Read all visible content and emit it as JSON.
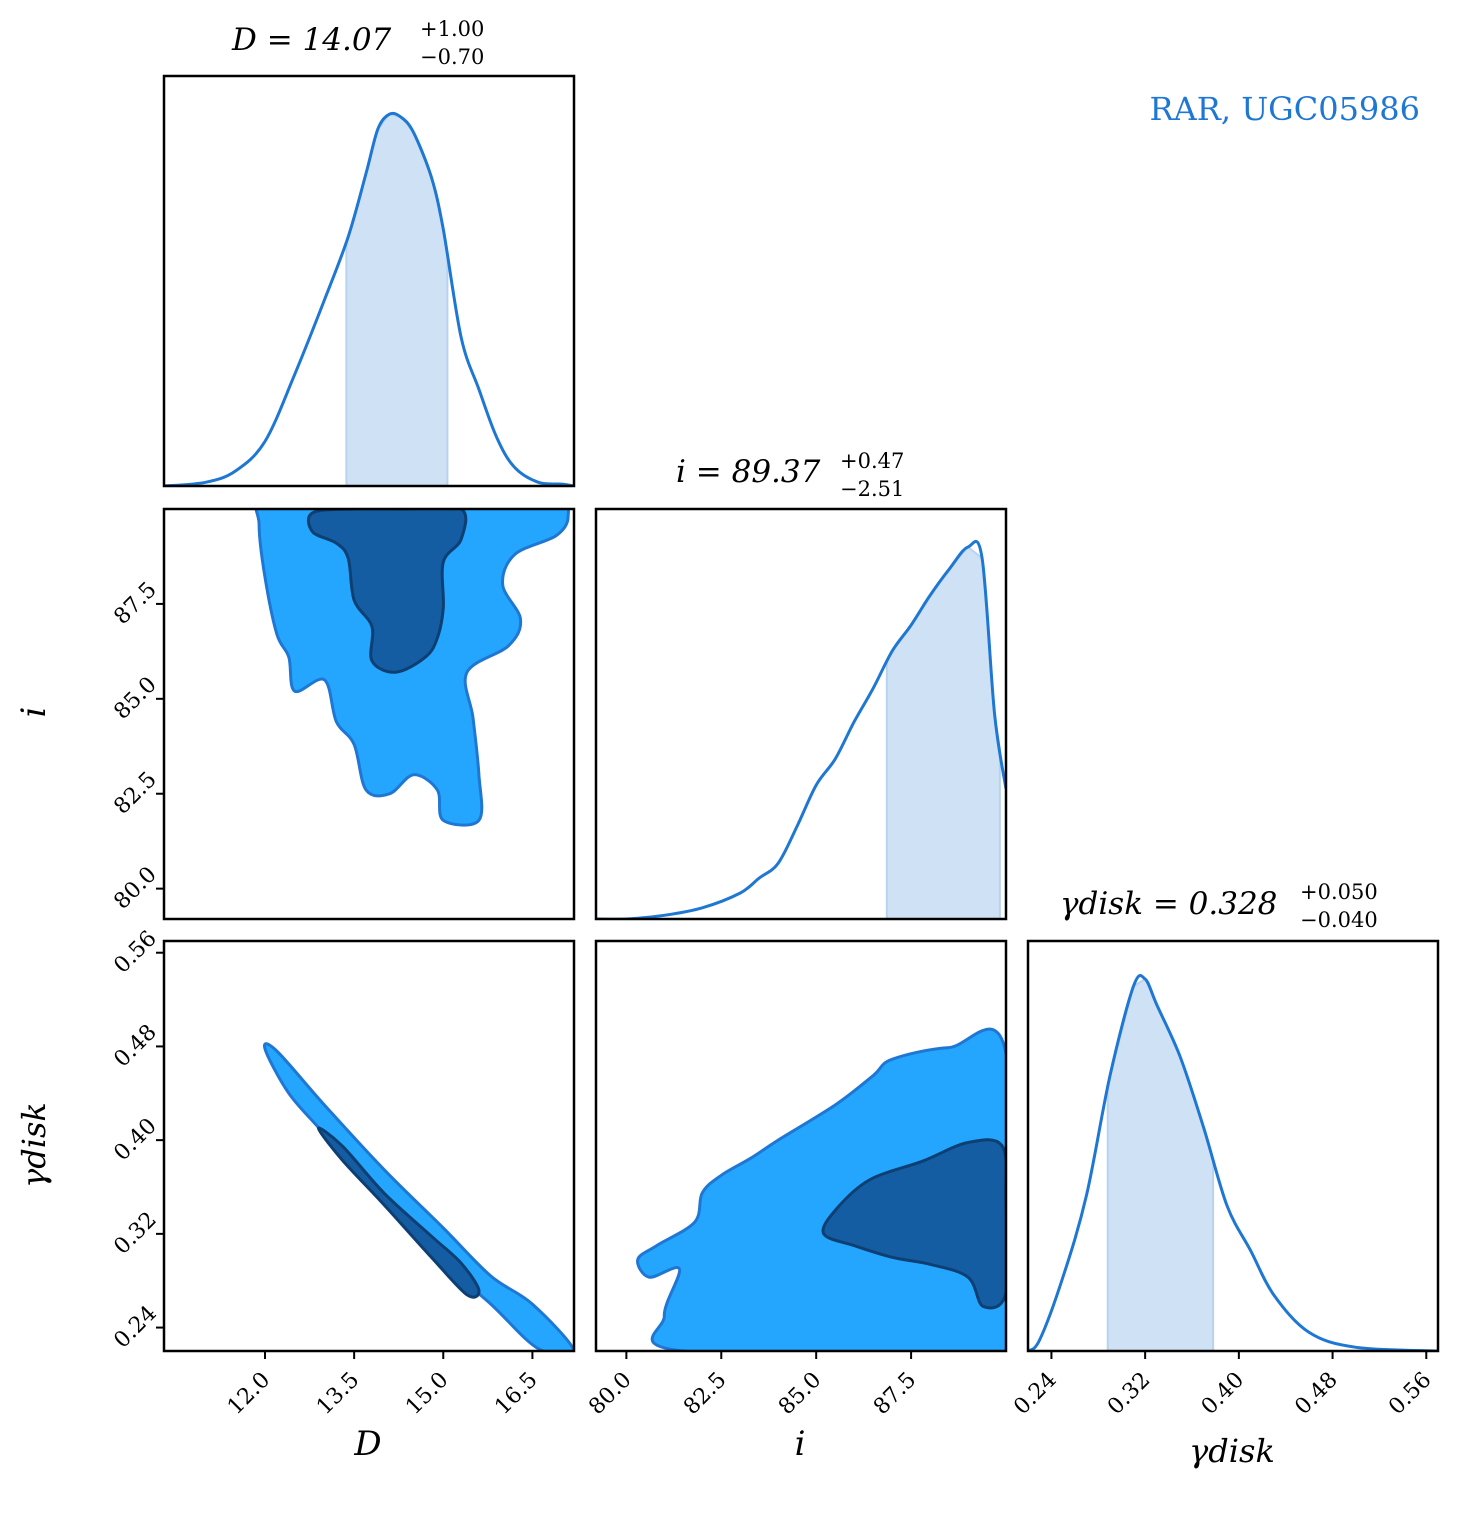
{
  "annotation": {
    "text": "RAR, UGC05986",
    "color": "#1f77d4"
  },
  "colors": {
    "line": "#1f77d4",
    "fill_light": "#cfe2f5",
    "contour_outer": "#24a6ff",
    "contour_inner": "#145da3"
  },
  "chart_data": {
    "type": "corner",
    "parameters": [
      {
        "key": "D",
        "label": "D",
        "title_lhs": "D = 14.07",
        "plus": "+1.00",
        "minus": "−0.70",
        "median": 14.07,
        "err_plus": 1.0,
        "err_minus": 0.7,
        "range": [
          10.3,
          17.2
        ],
        "ticks": [
          12.0,
          13.5,
          15.0,
          16.5
        ],
        "tick_labels": [
          "12.0",
          "13.5",
          "15.0",
          "16.5"
        ]
      },
      {
        "key": "i",
        "label": "i",
        "title_lhs": "i = 89.37",
        "plus": "+0.47",
        "minus": "−2.51",
        "median": 89.37,
        "err_plus": 0.47,
        "err_minus": 2.51,
        "range": [
          79.2,
          90.0
        ],
        "ticks": [
          80.0,
          82.5,
          85.0,
          87.5
        ],
        "tick_labels": [
          "80.0",
          "82.5",
          "85.0",
          "87.5"
        ]
      },
      {
        "key": "gamma_disk",
        "label": "γdisk",
        "title_lhs": "γdisk = 0.328",
        "plus": "+0.050",
        "minus": "−0.040",
        "median": 0.328,
        "err_plus": 0.05,
        "err_minus": 0.04,
        "range": [
          0.22,
          0.57
        ],
        "ticks": [
          0.24,
          0.32,
          0.4,
          0.48,
          0.56
        ],
        "tick_labels": [
          "0.24",
          "0.32",
          "0.40",
          "0.48",
          "0.56"
        ]
      }
    ],
    "marginals": {
      "D": {
        "x": [
          10.3,
          11.0,
          11.5,
          12.0,
          12.5,
          13.0,
          13.4,
          13.7,
          13.9,
          14.1,
          14.3,
          14.5,
          14.8,
          15.0,
          15.3,
          15.6,
          15.9,
          16.2,
          16.6,
          17.0,
          17.2
        ],
        "y": [
          0.0,
          0.01,
          0.04,
          0.12,
          0.3,
          0.5,
          0.67,
          0.84,
          0.96,
          1.0,
          0.99,
          0.95,
          0.83,
          0.69,
          0.4,
          0.26,
          0.13,
          0.05,
          0.01,
          0.005,
          0.0
        ]
      },
      "i": {
        "x": [
          79.2,
          80.0,
          81.0,
          82.0,
          83.0,
          83.5,
          84.0,
          84.5,
          85.0,
          85.5,
          86.0,
          86.5,
          87.0,
          87.5,
          88.0,
          88.5,
          89.0,
          89.37,
          89.7,
          90.0
        ],
        "y": [
          0.0,
          0.0,
          0.01,
          0.03,
          0.07,
          0.11,
          0.15,
          0.25,
          0.36,
          0.43,
          0.53,
          0.62,
          0.72,
          0.79,
          0.87,
          0.94,
          1.0,
          0.97,
          0.55,
          0.35
        ]
      },
      "gamma_disk": {
        "x": [
          0.22,
          0.23,
          0.25,
          0.27,
          0.29,
          0.31,
          0.32,
          0.33,
          0.35,
          0.37,
          0.39,
          0.41,
          0.43,
          0.46,
          0.5,
          0.57
        ],
        "y": [
          0.0,
          0.03,
          0.2,
          0.42,
          0.74,
          0.98,
          1.0,
          0.93,
          0.79,
          0.6,
          0.39,
          0.27,
          0.15,
          0.05,
          0.01,
          0.0
        ]
      }
    },
    "credible_intervals": {
      "D": [
        13.37,
        15.07
      ],
      "i": [
        86.86,
        89.84
      ],
      "gamma_disk": [
        0.288,
        0.378
      ]
    },
    "contours": {
      "D_i": {
        "outer": [
          [
            12.0,
            90.2
          ],
          [
            13.5,
            90.2
          ],
          [
            15.5,
            90.2
          ],
          [
            16.9,
            90.2
          ],
          [
            17.1,
            89.8
          ],
          [
            16.9,
            89.3
          ],
          [
            16.2,
            88.8
          ],
          [
            16.0,
            88.0
          ],
          [
            16.3,
            87.1
          ],
          [
            16.1,
            86.4
          ],
          [
            15.4,
            85.7
          ],
          [
            15.5,
            84.5
          ],
          [
            15.6,
            83.0
          ],
          [
            15.6,
            81.8
          ],
          [
            15.0,
            81.8
          ],
          [
            14.9,
            82.6
          ],
          [
            14.5,
            83.0
          ],
          [
            14.1,
            82.5
          ],
          [
            13.7,
            82.6
          ],
          [
            13.5,
            83.8
          ],
          [
            13.2,
            84.4
          ],
          [
            13.0,
            85.5
          ],
          [
            12.5,
            85.2
          ],
          [
            12.4,
            86.1
          ],
          [
            12.2,
            86.7
          ],
          [
            12.0,
            88.2
          ],
          [
            11.9,
            89.6
          ]
        ],
        "inner": [
          [
            12.8,
            89.9
          ],
          [
            13.5,
            90.0
          ],
          [
            14.4,
            90.0
          ],
          [
            15.3,
            90.0
          ],
          [
            15.3,
            89.2
          ],
          [
            15.0,
            88.6
          ],
          [
            15.0,
            87.4
          ],
          [
            14.9,
            86.6
          ],
          [
            14.7,
            86.1
          ],
          [
            14.2,
            85.7
          ],
          [
            13.8,
            86.0
          ],
          [
            13.8,
            86.9
          ],
          [
            13.5,
            87.6
          ],
          [
            13.4,
            88.7
          ],
          [
            13.2,
            89.1
          ],
          [
            12.8,
            89.4
          ]
        ]
      },
      "D_gamma": {
        "outer": [
          [
            12.0,
            0.478
          ],
          [
            12.2,
            0.476
          ],
          [
            13.0,
            0.43
          ],
          [
            14.0,
            0.375
          ],
          [
            15.0,
            0.325
          ],
          [
            15.8,
            0.284
          ],
          [
            16.5,
            0.26
          ],
          [
            17.2,
            0.22
          ],
          [
            16.6,
            0.222
          ],
          [
            15.8,
            0.26
          ],
          [
            15.0,
            0.295
          ],
          [
            14.0,
            0.345
          ],
          [
            13.0,
            0.405
          ],
          [
            12.4,
            0.44
          ]
        ],
        "inner": [
          [
            12.9,
            0.41
          ],
          [
            13.3,
            0.395
          ],
          [
            14.0,
            0.355
          ],
          [
            14.8,
            0.318
          ],
          [
            15.3,
            0.295
          ],
          [
            15.6,
            0.272
          ],
          [
            15.4,
            0.268
          ],
          [
            14.8,
            0.3
          ],
          [
            14.0,
            0.345
          ],
          [
            13.3,
            0.383
          ]
        ]
      },
      "i_gamma": {
        "outer": [
          [
            81.5,
            0.22
          ],
          [
            90.0,
            0.22
          ],
          [
            90.0,
            0.474
          ],
          [
            88.5,
            0.479
          ],
          [
            87.0,
            0.469
          ],
          [
            86.5,
            0.455
          ],
          [
            85.5,
            0.43
          ],
          [
            84.0,
            0.4
          ],
          [
            83.3,
            0.385
          ],
          [
            82.5,
            0.37
          ],
          [
            82.0,
            0.355
          ],
          [
            81.8,
            0.33
          ],
          [
            80.8,
            0.31
          ],
          [
            80.3,
            0.298
          ],
          [
            80.6,
            0.283
          ],
          [
            81.4,
            0.29
          ],
          [
            81.0,
            0.25
          ]
        ],
        "inner": [
          [
            85.5,
            0.34
          ],
          [
            86.4,
            0.366
          ],
          [
            87.8,
            0.382
          ],
          [
            89.0,
            0.398
          ],
          [
            89.9,
            0.395
          ],
          [
            90.0,
            0.35
          ],
          [
            90.0,
            0.27
          ],
          [
            89.4,
            0.258
          ],
          [
            89.0,
            0.283
          ],
          [
            88.0,
            0.294
          ],
          [
            87.0,
            0.3
          ],
          [
            86.0,
            0.31
          ],
          [
            85.2,
            0.32
          ]
        ]
      }
    }
  }
}
